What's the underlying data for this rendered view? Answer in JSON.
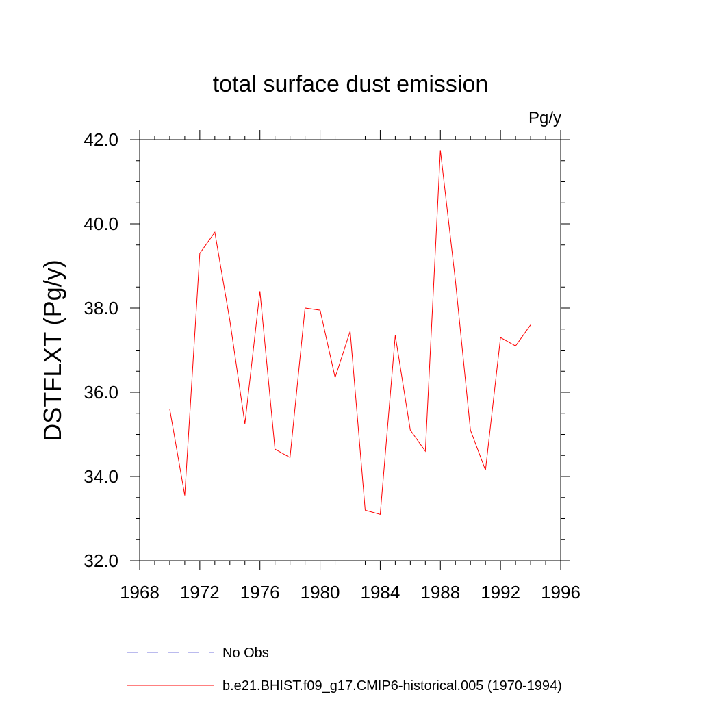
{
  "chart_data": {
    "type": "line",
    "title": "total surface dust emission",
    "units": "Pg/y",
    "xlabel": "",
    "ylabel": "DSTFLXT  (Pg/y)",
    "xlim": [
      1968,
      1996
    ],
    "ylim": [
      32.0,
      42.0
    ],
    "xticks": [
      1968,
      1972,
      1976,
      1980,
      1984,
      1988,
      1992,
      1996
    ],
    "xtick_labels": [
      "1968",
      "1972",
      "1976",
      "1980",
      "1984",
      "1988",
      "1992",
      "1996"
    ],
    "yticks": [
      32.0,
      34.0,
      36.0,
      38.0,
      40.0,
      42.0
    ],
    "ytick_labels": [
      "32.0",
      "34.0",
      "36.0",
      "38.0",
      "40.0",
      "42.0"
    ],
    "grid": false,
    "legend_position": "bottom",
    "series": [
      {
        "name": "b.e21.BHIST.f09_g17.CMIP6-historical.005 (1970-1994)",
        "color": "#ff0000",
        "style": "solid",
        "x": [
          1970,
          1971,
          1972,
          1973,
          1974,
          1975,
          1976,
          1977,
          1978,
          1979,
          1980,
          1981,
          1982,
          1983,
          1984,
          1985,
          1986,
          1987,
          1988,
          1989,
          1990,
          1991,
          1992,
          1993,
          1994
        ],
        "values": [
          35.6,
          33.55,
          39.3,
          39.8,
          37.7,
          35.25,
          38.4,
          34.65,
          34.45,
          38.0,
          37.95,
          36.35,
          37.45,
          33.2,
          33.1,
          37.35,
          35.1,
          34.6,
          41.75,
          38.65,
          35.1,
          34.15,
          37.3,
          37.1,
          37.6
        ]
      }
    ],
    "legend": [
      {
        "label": "No Obs",
        "color": "#7777dd",
        "style": "dashed"
      },
      {
        "label": "b.e21.BHIST.f09_g17.CMIP6-historical.005 (1970-1994)",
        "color": "#ff0000",
        "style": "solid"
      }
    ]
  }
}
